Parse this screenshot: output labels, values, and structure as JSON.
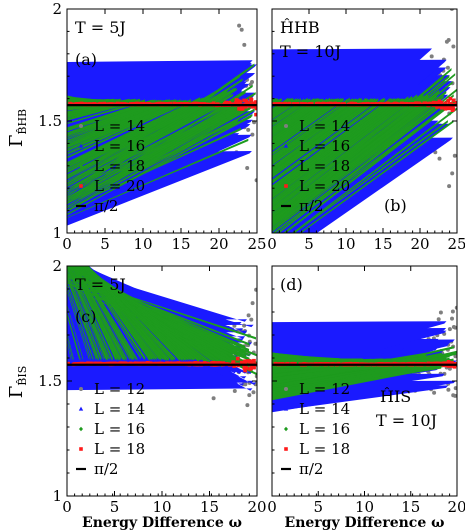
{
  "colors": {
    "L14_or_L12": "#7f7f7f",
    "L16_or_L14": "#1a1aff",
    "L18_or_L16": "#1e9b1e",
    "L20_or_L18": "#ff1a1a",
    "pi_half": "#000000"
  },
  "ylabels": {
    "top": "Γ",
    "top_sub": "B̂HB",
    "bottom": "Γ",
    "bottom_sub": "B̂IS"
  },
  "chart_data": [
    {
      "type": "scatter",
      "panel": "(a)",
      "annotation": "T = 5J",
      "xlabel": "",
      "xlim": [
        0,
        25
      ],
      "ylim": [
        1,
        2
      ],
      "xticks": [
        "0",
        "5",
        "10",
        "15",
        "20",
        "25"
      ],
      "yticks": [
        "1",
        "1.5",
        "2"
      ],
      "legend_position": "bottom-left",
      "series": [
        {
          "name": "L = 14",
          "marker": "circle",
          "center": 1.575,
          "spread_base": 0.008,
          "spread_growth": 0.4,
          "growth_start": 8,
          "points": 170
        },
        {
          "name": "L = 16",
          "marker": "triangle",
          "center": 1.58,
          "spread_base": 0.005,
          "spread_growth": 0.25,
          "growth_start": 12,
          "points": 200
        },
        {
          "name": "L = 18",
          "marker": "diamond",
          "center": 1.585,
          "spread_base": 0.004,
          "spread_growth": 0.22,
          "growth_start": 16,
          "points": 200
        },
        {
          "name": "L = 20",
          "marker": "square",
          "center": 1.575,
          "spread_base": 0.003,
          "spread_growth": 0.04,
          "growth_start": 18,
          "points": 250
        }
      ],
      "reference_line": {
        "name": "π/2",
        "y": 1.5708
      }
    },
    {
      "type": "scatter",
      "panel": "(b)",
      "annotation": "ĤHB",
      "annotation2": "T = 10J",
      "xlabel": "",
      "xlim": [
        0,
        25
      ],
      "ylim": [
        1,
        2
      ],
      "xticks": [
        "0",
        "5",
        "10",
        "15",
        "20",
        "25"
      ],
      "yticks": [
        "1",
        "1.5",
        "2"
      ],
      "legend_position": "bottom-left",
      "series": [
        {
          "name": "L = 14",
          "marker": "circle",
          "center": 1.58,
          "spread_base": 0.008,
          "spread_growth": 0.5,
          "growth_start": 10,
          "points": 170
        },
        {
          "name": "L = 16",
          "marker": "triangle",
          "center": 1.59,
          "spread_base": 0.005,
          "spread_growth": 0.35,
          "growth_start": 14,
          "points": 200
        },
        {
          "name": "L = 18",
          "marker": "diamond",
          "center": 1.59,
          "spread_base": 0.004,
          "spread_growth": 0.15,
          "growth_start": 17,
          "points": 200
        },
        {
          "name": "L = 20",
          "marker": "square",
          "center": 1.575,
          "spread_base": 0.003,
          "spread_growth": 0.03,
          "growth_start": 18,
          "points": 250
        }
      ],
      "reference_line": {
        "name": "π/2",
        "y": 1.5708
      }
    },
    {
      "type": "scatter",
      "panel": "(c)",
      "annotation": "T = 5J",
      "xlabel": "Energy Difference ω",
      "xlim": [
        0,
        20
      ],
      "ylim": [
        1,
        2
      ],
      "xticks": [
        "0",
        "5",
        "10",
        "15",
        "20"
      ],
      "yticks": [
        "1",
        "1.5",
        "2"
      ],
      "legend_position": "bottom-left",
      "series": [
        {
          "name": "L = 12",
          "marker": "circle",
          "center": 1.6,
          "spread_base": 0.02,
          "spread_growth": 0.28,
          "growth_start": 5,
          "points": 230
        },
        {
          "name": "L = 14",
          "marker": "triangle",
          "center": 1.6,
          "spread_base": 0.008,
          "spread_growth": 0.2,
          "growth_start": 9,
          "points": 230
        },
        {
          "name": "L = 16",
          "marker": "diamond",
          "center": 1.59,
          "spread_base": 0.004,
          "spread_growth": 0.09,
          "growth_start": 12,
          "points": 230
        },
        {
          "name": "L = 18",
          "marker": "square",
          "center": 1.575,
          "spread_base": 0.003,
          "spread_growth": 0.03,
          "growth_start": 12,
          "points": 260
        }
      ],
      "reference_line": {
        "name": "π/2",
        "y": 1.5708
      }
    },
    {
      "type": "scatter",
      "panel": "(d)",
      "annotation": "ĤIS",
      "annotation2": "T = 10J",
      "xlabel": "Energy Difference ω",
      "xlim": [
        0,
        20
      ],
      "ylim": [
        1,
        2
      ],
      "xticks": [
        "0",
        "5",
        "10",
        "15",
        "20"
      ],
      "yticks": [
        "1",
        "1.5",
        "2"
      ],
      "legend_position": "bottom-left",
      "series": [
        {
          "name": "L = 12",
          "marker": "circle",
          "center": 1.61,
          "spread_base": 0.02,
          "spread_growth": 0.3,
          "growth_start": 5,
          "points": 230
        },
        {
          "name": "L = 14",
          "marker": "triangle",
          "center": 1.6,
          "spread_base": 0.008,
          "spread_growth": 0.16,
          "growth_start": 9,
          "points": 230
        },
        {
          "name": "L = 16",
          "marker": "diamond",
          "center": 1.585,
          "spread_base": 0.004,
          "spread_growth": 0.05,
          "growth_start": 12,
          "points": 230
        },
        {
          "name": "L = 18",
          "marker": "square",
          "center": 1.573,
          "spread_base": 0.002,
          "spread_growth": 0.01,
          "growth_start": 14,
          "points": 260
        }
      ],
      "reference_line": {
        "name": "π/2",
        "y": 1.5708
      }
    }
  ]
}
